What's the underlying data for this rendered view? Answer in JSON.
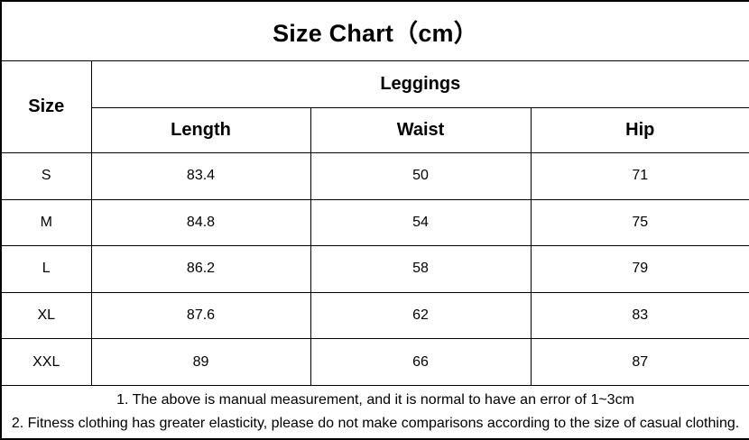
{
  "page": {
    "background_color": "#ffffff",
    "border_color": "#000000",
    "text_color": "#000000"
  },
  "title": "Size Chart（cm）",
  "size_table": {
    "corner_header": "Size",
    "group_header": "Leggings",
    "measure_headers": [
      "Length",
      "Waist",
      "Hip"
    ],
    "rows": [
      {
        "size": "S",
        "length": "83.4",
        "waist": "50",
        "hip": "71"
      },
      {
        "size": "M",
        "length": "84.8",
        "waist": "54",
        "hip": "75"
      },
      {
        "size": "L",
        "length": "86.2",
        "waist": "58",
        "hip": "79"
      },
      {
        "size": "XL",
        "length": "87.6",
        "waist": "62",
        "hip": "83"
      },
      {
        "size": "XXL",
        "length": "89",
        "waist": "66",
        "hip": "87"
      }
    ]
  },
  "notes": {
    "line1": "1. The above is manual measurement, and it is normal to have an error of 1~3cm",
    "line2": "2. Fitness clothing has greater elasticity, please do not make comparisons according to the size of casual clothing."
  }
}
